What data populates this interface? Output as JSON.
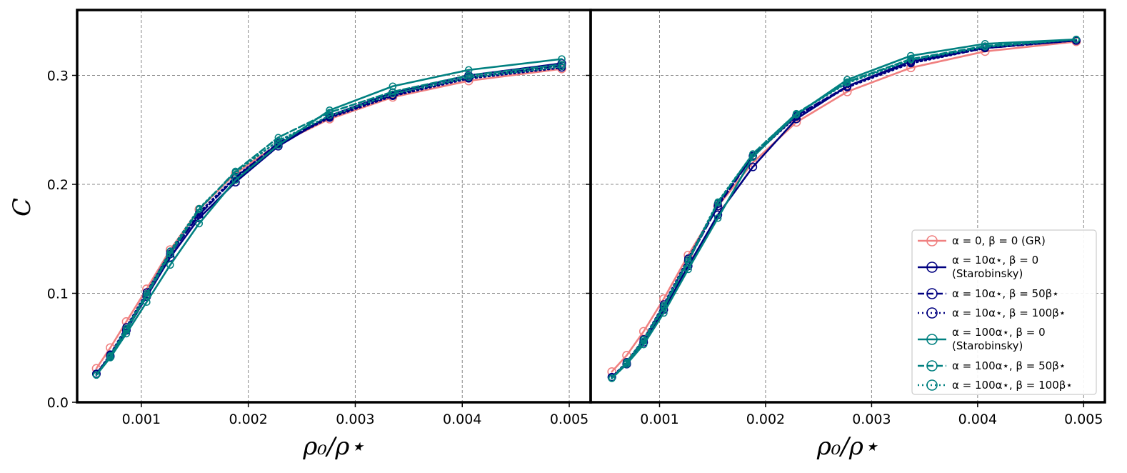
{
  "chart_data": [
    {
      "type": "line",
      "panel": "left",
      "xlabel": "ρ₀/ρ⋆",
      "ylabel": "C",
      "xlim": [
        0.0004,
        0.0052
      ],
      "ylim": [
        0.0,
        0.36
      ],
      "xticks": [
        "0.001",
        "0.002",
        "0.003",
        "0.004",
        "0.005"
      ],
      "yticks": [
        "0.0",
        "0.1",
        "0.2",
        "0.3"
      ],
      "grid": true,
      "series": [
        {
          "name": "α = 0, β = 0 (GR)",
          "color": "#f08080",
          "style": "solid",
          "x": [
            0.00058,
            0.00071,
            0.00086,
            0.00105,
            0.00127,
            0.00154,
            0.00188,
            0.00228,
            0.00276,
            0.00335,
            0.00406,
            0.00493
          ],
          "y": [
            0.031,
            0.05,
            0.074,
            0.104,
            0.14,
            0.177,
            0.21,
            0.237,
            0.26,
            0.28,
            0.295,
            0.306
          ]
        },
        {
          "name": "α = 10α⋆, β = 0 (Starobinsky)",
          "color": "#000080",
          "style": "solid",
          "x": [
            0.00058,
            0.00071,
            0.00086,
            0.00105,
            0.00127,
            0.00154,
            0.00188,
            0.00228,
            0.00276,
            0.00335,
            0.00406,
            0.00493
          ],
          "y": [
            0.026,
            0.042,
            0.066,
            0.097,
            0.133,
            0.169,
            0.202,
            0.235,
            0.263,
            0.284,
            0.3,
            0.311
          ]
        },
        {
          "name": "α = 10α⋆, β = 50β⋆",
          "color": "#000080",
          "style": "dashed",
          "x": [
            0.00058,
            0.00071,
            0.00086,
            0.00105,
            0.00127,
            0.00154,
            0.00188,
            0.00228,
            0.00276,
            0.00335,
            0.00406,
            0.00493
          ],
          "y": [
            0.026,
            0.043,
            0.067,
            0.099,
            0.136,
            0.172,
            0.206,
            0.238,
            0.262,
            0.282,
            0.298,
            0.309
          ]
        },
        {
          "name": "α = 10α⋆, β = 100β⋆",
          "color": "#000080",
          "style": "dotted",
          "x": [
            0.00058,
            0.00071,
            0.00086,
            0.00105,
            0.00127,
            0.00154,
            0.00188,
            0.00228,
            0.00276,
            0.00335,
            0.00406,
            0.00493
          ],
          "y": [
            0.026,
            0.044,
            0.069,
            0.101,
            0.138,
            0.174,
            0.207,
            0.237,
            0.261,
            0.281,
            0.297,
            0.307
          ]
        },
        {
          "name": "α = 100α⋆, β = 0 (Starobinsky)",
          "color": "#008080",
          "style": "solid",
          "x": [
            0.00058,
            0.00071,
            0.00086,
            0.00105,
            0.00127,
            0.00154,
            0.00188,
            0.00228,
            0.00276,
            0.00335,
            0.00406,
            0.00493
          ],
          "y": [
            0.025,
            0.041,
            0.063,
            0.092,
            0.126,
            0.164,
            0.204,
            0.236,
            0.268,
            0.29,
            0.305,
            0.315
          ]
        },
        {
          "name": "α = 100α⋆, β = 50β⋆",
          "color": "#008080",
          "style": "dashed",
          "x": [
            0.00058,
            0.00071,
            0.00086,
            0.00105,
            0.00127,
            0.00154,
            0.00188,
            0.00228,
            0.00276,
            0.00335,
            0.00406,
            0.00493
          ],
          "y": [
            0.025,
            0.042,
            0.066,
            0.098,
            0.136,
            0.177,
            0.212,
            0.243,
            0.266,
            0.285,
            0.3,
            0.31
          ]
        },
        {
          "name": "α = 100α⋆, β = 100β⋆",
          "color": "#008080",
          "style": "dotted",
          "x": [
            0.00058,
            0.00071,
            0.00086,
            0.00105,
            0.00127,
            0.00154,
            0.00188,
            0.00228,
            0.00276,
            0.00335,
            0.00406,
            0.00493
          ],
          "y": [
            0.025,
            0.043,
            0.068,
            0.1,
            0.139,
            0.178,
            0.211,
            0.24,
            0.263,
            0.283,
            0.298,
            0.308
          ]
        }
      ]
    },
    {
      "type": "line",
      "panel": "right",
      "xlabel": "ρ₀/ρ⋆",
      "ylabel": "",
      "xlim": [
        0.00035,
        0.0052
      ],
      "ylim": [
        0.0,
        0.36
      ],
      "xticks": [
        "0.001",
        "0.002",
        "0.003",
        "0.004",
        "0.005"
      ],
      "yticks": [],
      "grid": true,
      "legend": "lower-right",
      "series": [
        {
          "name": "α = 0, β = 0 (GR)",
          "color": "#f08080",
          "style": "solid",
          "x": [
            0.00055,
            0.00069,
            0.00085,
            0.00104,
            0.00127,
            0.00155,
            0.00188,
            0.00229,
            0.00277,
            0.00337,
            0.00407,
            0.00493
          ],
          "y": [
            0.028,
            0.043,
            0.065,
            0.095,
            0.135,
            0.18,
            0.22,
            0.257,
            0.285,
            0.307,
            0.322,
            0.331
          ]
        },
        {
          "name": "α = 10α⋆, β = 0 (Starobinsky)",
          "color": "#000080",
          "style": "solid",
          "x": [
            0.00055,
            0.00069,
            0.00085,
            0.00104,
            0.00127,
            0.00155,
            0.00188,
            0.00229,
            0.00277,
            0.00337,
            0.00407,
            0.00493
          ],
          "y": [
            0.023,
            0.035,
            0.055,
            0.085,
            0.125,
            0.172,
            0.216,
            0.26,
            0.29,
            0.313,
            0.326,
            0.332
          ]
        },
        {
          "name": "α = 10α⋆, β = 50β⋆",
          "color": "#000080",
          "style": "dashed",
          "x": [
            0.00055,
            0.00069,
            0.00085,
            0.00104,
            0.00127,
            0.00155,
            0.00188,
            0.00229,
            0.00277,
            0.00337,
            0.00407,
            0.00493
          ],
          "y": [
            0.023,
            0.036,
            0.057,
            0.088,
            0.13,
            0.18,
            0.226,
            0.263,
            0.29,
            0.312,
            0.325,
            0.332
          ]
        },
        {
          "name": "α = 10α⋆, β = 100β⋆",
          "color": "#000080",
          "style": "dotted",
          "x": [
            0.00055,
            0.00069,
            0.00085,
            0.00104,
            0.00127,
            0.00155,
            0.00188,
            0.00229,
            0.00277,
            0.00337,
            0.00407,
            0.00493
          ],
          "y": [
            0.023,
            0.037,
            0.058,
            0.09,
            0.132,
            0.182,
            0.226,
            0.262,
            0.289,
            0.311,
            0.325,
            0.332
          ]
        },
        {
          "name": "α = 100α⋆, β = 0 (Starobinsky)",
          "color": "#008080",
          "style": "solid",
          "x": [
            0.00055,
            0.00069,
            0.00085,
            0.00104,
            0.00127,
            0.00155,
            0.00188,
            0.00229,
            0.00277,
            0.00337,
            0.00407,
            0.00493
          ],
          "y": [
            0.022,
            0.035,
            0.053,
            0.082,
            0.122,
            0.169,
            0.225,
            0.264,
            0.296,
            0.318,
            0.329,
            0.333
          ]
        },
        {
          "name": "α = 100α⋆, β = 50β⋆",
          "color": "#008080",
          "style": "dashed",
          "x": [
            0.00055,
            0.00069,
            0.00085,
            0.00104,
            0.00127,
            0.00155,
            0.00188,
            0.00229,
            0.00277,
            0.00337,
            0.00407,
            0.00493
          ],
          "y": [
            0.022,
            0.036,
            0.056,
            0.087,
            0.129,
            0.183,
            0.228,
            0.265,
            0.294,
            0.315,
            0.327,
            0.333
          ]
        },
        {
          "name": "α = 100α⋆, β = 100β⋆",
          "color": "#008080",
          "style": "dotted",
          "x": [
            0.00055,
            0.00069,
            0.00085,
            0.00104,
            0.00127,
            0.00155,
            0.00188,
            0.00229,
            0.00277,
            0.00337,
            0.00407,
            0.00493
          ],
          "y": [
            0.022,
            0.037,
            0.058,
            0.089,
            0.131,
            0.184,
            0.228,
            0.265,
            0.293,
            0.314,
            0.326,
            0.333
          ]
        }
      ]
    }
  ],
  "legend_items": [
    {
      "line1": "α = 0, β = 0 (GR)",
      "line2": "",
      "color": "#f08080",
      "style": "solid"
    },
    {
      "line1": "α = 10α⋆, β = 0",
      "line2": "(Starobinsky)",
      "color": "#000080",
      "style": "solid"
    },
    {
      "line1": "α = 10α⋆, β = 50β⋆",
      "line2": "",
      "color": "#000080",
      "style": "dashed"
    },
    {
      "line1": "α = 10α⋆, β = 100β⋆",
      "line2": "",
      "color": "#000080",
      "style": "dotted"
    },
    {
      "line1": "α = 100α⋆, β = 0",
      "line2": "(Starobinsky)",
      "color": "#008080",
      "style": "solid"
    },
    {
      "line1": "α = 100α⋆, β = 50β⋆",
      "line2": "",
      "color": "#008080",
      "style": "dashed"
    },
    {
      "line1": "α = 100α⋆, β = 100β⋆",
      "line2": "",
      "color": "#008080",
      "style": "dotted"
    }
  ]
}
